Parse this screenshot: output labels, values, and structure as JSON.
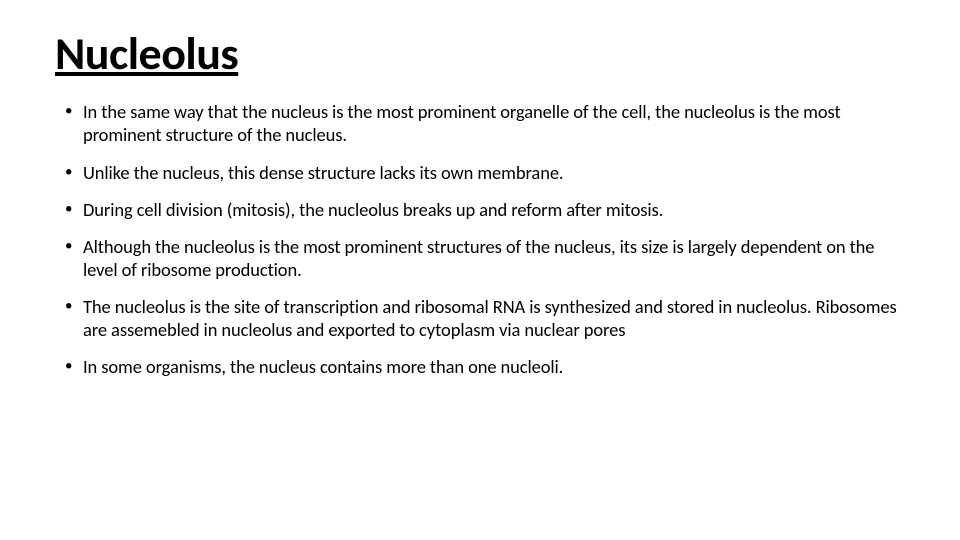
{
  "slide": {
    "title": "Nucleolus",
    "bullets": [
      "In the same way that the nucleus is the most prominent organelle of the cell, the nucleolus is the most prominent structure of the nucleus.",
      " Unlike the nucleus, this dense structure lacks its own membrane.",
      "During cell division (mitosis), the nucleolus breaks up and reform after mitosis.",
      " Although the nucleolus is the most prominent structures of the nucleus, its size is largely dependent on the level of ribosome production.",
      "The nucleolus is the site of transcription and ribosomal RNA is synthesized and stored in nucleolus. Ribosomes are assemebled in nucleolus and exported to cytoplasm via nuclear pores",
      "In some organisms, the nucleus contains more than one nucleoli."
    ],
    "style": {
      "background_color": "#ffffff",
      "text_color": "#000000",
      "title_fontsize": 46,
      "title_weight": 700,
      "title_underline": true,
      "body_fontsize": 18.5,
      "bullet_char": "•",
      "font_family": "Calibri"
    }
  }
}
